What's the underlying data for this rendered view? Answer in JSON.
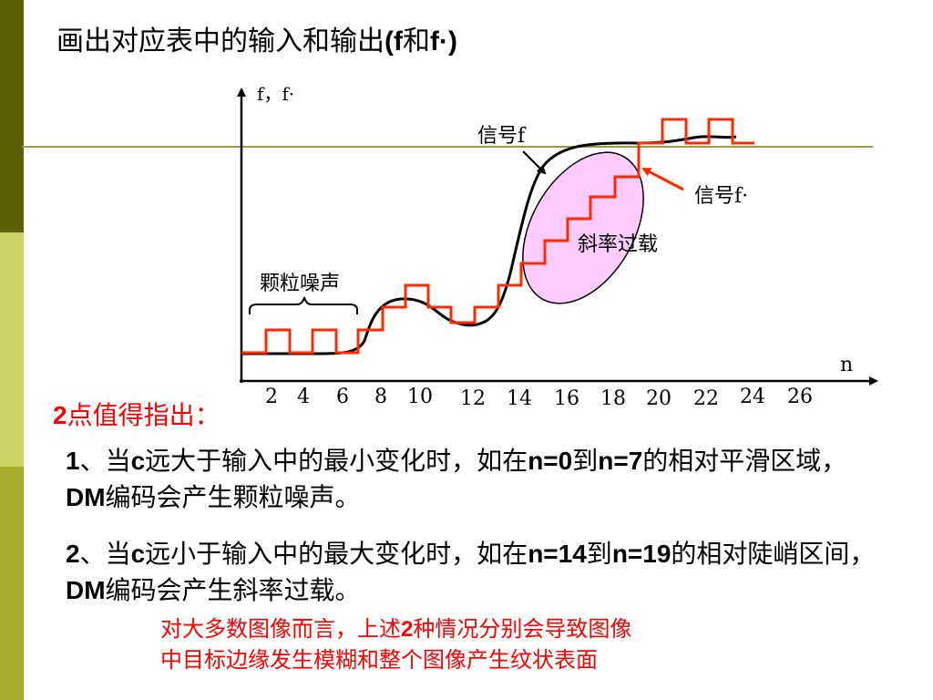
{
  "slide": {
    "title_pre": "画出对应表中的输入和输出",
    "title_f": "(f",
    "title_and": "和",
    "title_fq": "f",
    "title_dot": "·)"
  },
  "diagram": {
    "y_axis_label": "f，f·",
    "x_axis_label": "n",
    "x_ticks": [
      "2",
      "4",
      "6",
      "8",
      "10",
      "12",
      "14",
      "16",
      "18",
      "20",
      "22",
      "24",
      "26"
    ],
    "label_signal_f": "信号f",
    "label_signal_fq": "信号f·",
    "label_slope_overload": "斜率过载",
    "label_granular_noise": "颗粒噪声",
    "colors": {
      "signal": "#000000",
      "staircase": "#ff2a00",
      "overload_region": "#ffccff",
      "reference_line": "#9c9c3c",
      "pointer": "#ff2a00"
    }
  },
  "points": {
    "heading_num": "2",
    "heading_text": "点值得指出：",
    "p1": {
      "num": "1",
      "t1": "、当",
      "c": "c",
      "t2": "远大于输入中的最小变化时，如在",
      "n_start": "n=0",
      "t3": "到",
      "n_end": "n=7",
      "t4": "的相对平滑区域，",
      "dm": "DM",
      "t5": "编码会产生颗粒噪声。"
    },
    "p2": {
      "num": "2",
      "t1": "、当",
      "c": "c",
      "t2": "远小于输入中的最大变化时，如在",
      "n_start": "n=14",
      "t3": "到",
      "n_end": "n=19",
      "t4": "的相对陡峭区间，",
      "dm": "DM",
      "t5": "编码会产生斜率过载。"
    }
  },
  "note": {
    "l1_a": "对大多数图像而言，上述",
    "l1_num": "2",
    "l1_b": "种情况分别会导致图像",
    "l2": "中目标边缘发生模糊和整个图像产生纹状表面"
  }
}
